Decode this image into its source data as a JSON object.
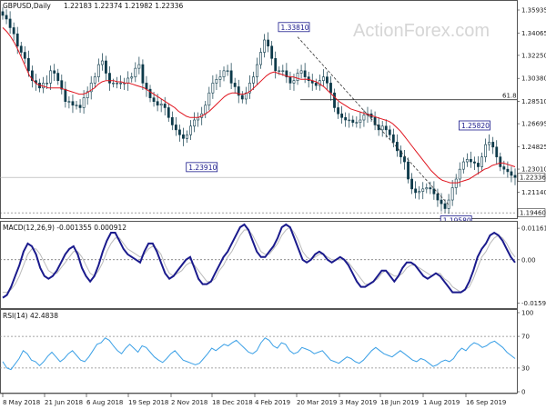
{
  "chart_data": [
    {
      "type": "candlestick",
      "title": "GBPUSD,Daily",
      "ohlc_label": "1.22183 1.22374 1.21982 1.22336",
      "watermark": "ActionForex.com",
      "ylim": [
        1.191,
        1.366
      ],
      "y_ticks": [
        "1.35935",
        "1.34065",
        "1.32250",
        "1.30380",
        "1.28510",
        "1.26695",
        "1.24825",
        "1.23010",
        "1.21140"
      ],
      "current_price": "1.22336",
      "bottom_level": "1.19460",
      "fib_label": "61.8",
      "fib_level": 1.2865,
      "annotations": [
        {
          "text": "1.23910",
          "value": 1.2391
        },
        {
          "text": "1.33810",
          "value": 1.3381
        },
        {
          "text": "1.25820",
          "value": 1.2582
        },
        {
          "text": "1.19580",
          "value": 1.1958
        }
      ],
      "close_path": [
        1.355,
        1.352,
        1.345,
        1.34,
        1.33,
        1.325,
        1.32,
        1.31,
        1.302,
        1.3,
        1.296,
        1.3,
        1.3,
        1.31,
        1.308,
        1.302,
        1.295,
        1.285,
        1.285,
        1.282,
        1.282,
        1.28,
        1.288,
        1.293,
        1.3,
        1.305,
        1.315,
        1.318,
        1.308,
        1.3,
        1.3,
        1.3,
        1.3,
        1.3,
        1.304,
        1.305,
        1.312,
        1.315,
        1.3,
        1.295,
        1.288,
        1.285,
        1.282,
        1.283,
        1.28,
        1.272,
        1.266,
        1.262,
        1.258,
        1.255,
        1.258,
        1.265,
        1.27,
        1.272,
        1.275,
        1.282,
        1.292,
        1.3,
        1.303,
        1.305,
        1.31,
        1.31,
        1.3,
        1.297,
        1.29,
        1.287,
        1.292,
        1.3,
        1.305,
        1.315,
        1.325,
        1.335,
        1.33,
        1.32,
        1.31,
        1.31,
        1.31,
        1.305,
        1.3,
        1.302,
        1.308,
        1.31,
        1.305,
        1.302,
        1.3,
        1.298,
        1.302,
        1.305,
        1.3,
        1.292,
        1.28,
        1.275,
        1.272,
        1.27,
        1.27,
        1.268,
        1.268,
        1.27,
        1.274,
        1.275,
        1.272,
        1.266,
        1.262,
        1.265,
        1.262,
        1.258,
        1.252,
        1.245,
        1.24,
        1.236,
        1.222,
        1.214,
        1.211,
        1.212,
        1.214,
        1.215,
        1.214,
        1.21,
        1.205,
        1.202,
        1.198,
        1.205,
        1.215,
        1.222,
        1.23,
        1.236,
        1.238,
        1.236,
        1.235,
        1.232,
        1.24,
        1.25,
        1.252,
        1.248,
        1.24,
        1.232,
        1.23,
        1.228,
        1.225,
        1.2233
      ],
      "sma_path": [
        1.345,
        1.342,
        1.338,
        1.333,
        1.327,
        1.32,
        1.313,
        1.306,
        1.302,
        1.299,
        1.298,
        1.297,
        1.296,
        1.296,
        1.296,
        1.296,
        1.295,
        1.294,
        1.293,
        1.292,
        1.291,
        1.291,
        1.292,
        1.294,
        1.296,
        1.299,
        1.301,
        1.302,
        1.302,
        1.302,
        1.301,
        1.301,
        1.3,
        1.3,
        1.299,
        1.298,
        1.297,
        1.296,
        1.294,
        1.292,
        1.29,
        1.288,
        1.286,
        1.284,
        1.282,
        1.28,
        1.277,
        1.275,
        1.273,
        1.272,
        1.272,
        1.272,
        1.273,
        1.275,
        1.277,
        1.28,
        1.283,
        1.286,
        1.289,
        1.291,
        1.292,
        1.292,
        1.291,
        1.291,
        1.292,
        1.294,
        1.297,
        1.3,
        1.303,
        1.306,
        1.308,
        1.309,
        1.308,
        1.307,
        1.306,
        1.305,
        1.305,
        1.304,
        1.303,
        1.303,
        1.303,
        1.302,
        1.301,
        1.299,
        1.297,
        1.294,
        1.291,
        1.288,
        1.285,
        1.283,
        1.281,
        1.279,
        1.278,
        1.277,
        1.276,
        1.275,
        1.274,
        1.273,
        1.272,
        1.271,
        1.27,
        1.269,
        1.267,
        1.264,
        1.261,
        1.257,
        1.253,
        1.249,
        1.245,
        1.241,
        1.237,
        1.233,
        1.229,
        1.226,
        1.223,
        1.221,
        1.22,
        1.219,
        1.219,
        1.219,
        1.22,
        1.221,
        1.222,
        1.224,
        1.226,
        1.228,
        1.23,
        1.231,
        1.233,
        1.234,
        1.235,
        1.235,
        1.234,
        1.233,
        1.232
      ]
    },
    {
      "type": "line",
      "title": "MACD(12,26,9) -0.001355 0.000912",
      "ylim": [
        -0.0175,
        0.013
      ],
      "y_ticks": [
        "0.011619",
        "0.00",
        "-0.015949"
      ],
      "zero": 0,
      "macd_path": [
        -0.014,
        -0.013,
        -0.01,
        -0.006,
        -0.002,
        0.003,
        0.006,
        0.005,
        0.002,
        -0.003,
        -0.006,
        -0.007,
        -0.006,
        -0.004,
        -0.001,
        0.002,
        0.004,
        0.005,
        0.002,
        -0.003,
        -0.006,
        -0.008,
        -0.006,
        -0.002,
        0.003,
        0.007,
        0.01,
        0.01,
        0.007,
        0.004,
        0.002,
        0.001,
        0.0,
        -0.001,
        0.003,
        0.006,
        0.006,
        0.003,
        -0.001,
        -0.005,
        -0.007,
        -0.006,
        -0.004,
        -0.002,
        0.0,
        0.001,
        -0.003,
        -0.007,
        -0.009,
        -0.009,
        -0.008,
        -0.005,
        -0.002,
        0.001,
        0.003,
        0.006,
        0.009,
        0.012,
        0.013,
        0.011,
        0.007,
        0.003,
        0.001,
        0.001,
        0.003,
        0.005,
        0.008,
        0.012,
        0.013,
        0.012,
        0.008,
        0.004,
        0.0,
        -0.001,
        0.0,
        0.002,
        0.003,
        0.002,
        0.0,
        -0.001,
        0.0,
        0.001,
        0.0,
        -0.002,
        -0.005,
        -0.008,
        -0.01,
        -0.01,
        -0.009,
        -0.008,
        -0.006,
        -0.004,
        -0.004,
        -0.006,
        -0.008,
        -0.006,
        -0.003,
        -0.001,
        -0.001,
        -0.002,
        -0.004,
        -0.006,
        -0.007,
        -0.006,
        -0.005,
        -0.006,
        -0.008,
        -0.01,
        -0.012,
        -0.012,
        -0.012,
        -0.011,
        -0.008,
        -0.004,
        0.001,
        0.004,
        0.006,
        0.009,
        0.01,
        0.009,
        0.007,
        0.004,
        0.001,
        -0.001
      ],
      "signal_path": [
        -0.012,
        -0.012,
        -0.011,
        -0.009,
        -0.006,
        -0.002,
        0.002,
        0.004,
        0.004,
        0.002,
        -0.001,
        -0.004,
        -0.005,
        -0.005,
        -0.003,
        -0.001,
        0.001,
        0.003,
        0.003,
        0.001,
        -0.002,
        -0.005,
        -0.006,
        -0.004,
        -0.001,
        0.003,
        0.006,
        0.008,
        0.008,
        0.006,
        0.004,
        0.003,
        0.002,
        0.001,
        0.002,
        0.004,
        0.005,
        0.004,
        0.002,
        -0.002,
        -0.005,
        -0.006,
        -0.005,
        -0.004,
        -0.002,
        -0.001,
        -0.002,
        -0.004,
        -0.006,
        -0.008,
        -0.008,
        -0.007,
        -0.004,
        -0.002,
        0.001,
        0.003,
        0.006,
        0.009,
        0.011,
        0.011,
        0.009,
        0.006,
        0.003,
        0.002,
        0.002,
        0.004,
        0.006,
        0.009,
        0.011,
        0.012,
        0.01,
        0.007,
        0.003,
        0.001,
        0.0,
        0.001,
        0.002,
        0.002,
        0.001,
        0.0,
        0.0,
        0.0,
        0.0,
        -0.001,
        -0.003,
        -0.005,
        -0.007,
        -0.009,
        -0.009,
        -0.008,
        -0.007,
        -0.005,
        -0.004,
        -0.005,
        -0.006,
        -0.006,
        -0.005,
        -0.003,
        -0.002,
        -0.002,
        -0.003,
        -0.004,
        -0.005,
        -0.006,
        -0.005,
        -0.005,
        -0.007,
        -0.008,
        -0.01,
        -0.011,
        -0.012,
        -0.011,
        -0.01,
        -0.007,
        -0.003,
        0.001,
        0.003,
        0.006,
        0.008,
        0.009,
        0.008,
        0.006,
        0.003,
        0.001
      ]
    },
    {
      "type": "line",
      "title": "RSI(14) 42.4838",
      "ylim": [
        0,
        100
      ],
      "y_ticks": [
        "100",
        "70",
        "30",
        "0"
      ],
      "levels": [
        70,
        30
      ],
      "rsi_path": [
        38,
        30,
        28,
        35,
        42,
        52,
        48,
        40,
        38,
        33,
        38,
        45,
        50,
        44,
        38,
        42,
        48,
        52,
        46,
        40,
        38,
        44,
        52,
        60,
        62,
        68,
        65,
        58,
        52,
        48,
        55,
        60,
        55,
        50,
        58,
        56,
        50,
        44,
        40,
        37,
        42,
        48,
        52,
        46,
        40,
        38,
        36,
        34,
        36,
        42,
        48,
        55,
        52,
        56,
        60,
        58,
        62,
        65,
        60,
        55,
        50,
        48,
        52,
        62,
        68,
        65,
        58,
        55,
        62,
        60,
        52,
        48,
        50,
        56,
        54,
        52,
        48,
        50,
        52,
        46,
        40,
        38,
        36,
        40,
        44,
        42,
        38,
        36,
        40,
        46,
        52,
        56,
        52,
        48,
        46,
        44,
        48,
        52,
        48,
        44,
        40,
        38,
        42,
        40,
        36,
        32,
        34,
        38,
        40,
        38,
        42,
        50,
        55,
        52,
        58,
        62,
        60,
        56,
        58,
        62,
        64,
        60,
        56,
        50,
        46,
        42
      ]
    }
  ],
  "x_ticks": [
    "8 May 2018",
    "21 Jun 2018",
    "6 Aug 2018",
    "19 Sep 2018",
    "2 Nov 2018",
    "18 Dec 2018",
    "4 Feb 2019",
    "20 Mar 2019",
    "3 May 2019",
    "18 Jun 2019",
    "1 Aug 2019",
    "16 Sep 2019"
  ],
  "colors": {
    "candle": "#0d3a4a",
    "sma": "#e0141e",
    "macd": "#1a1a8c",
    "signal": "#bbbbbb",
    "rsi": "#3ba0e6",
    "grid": "#c8c8c8"
  }
}
